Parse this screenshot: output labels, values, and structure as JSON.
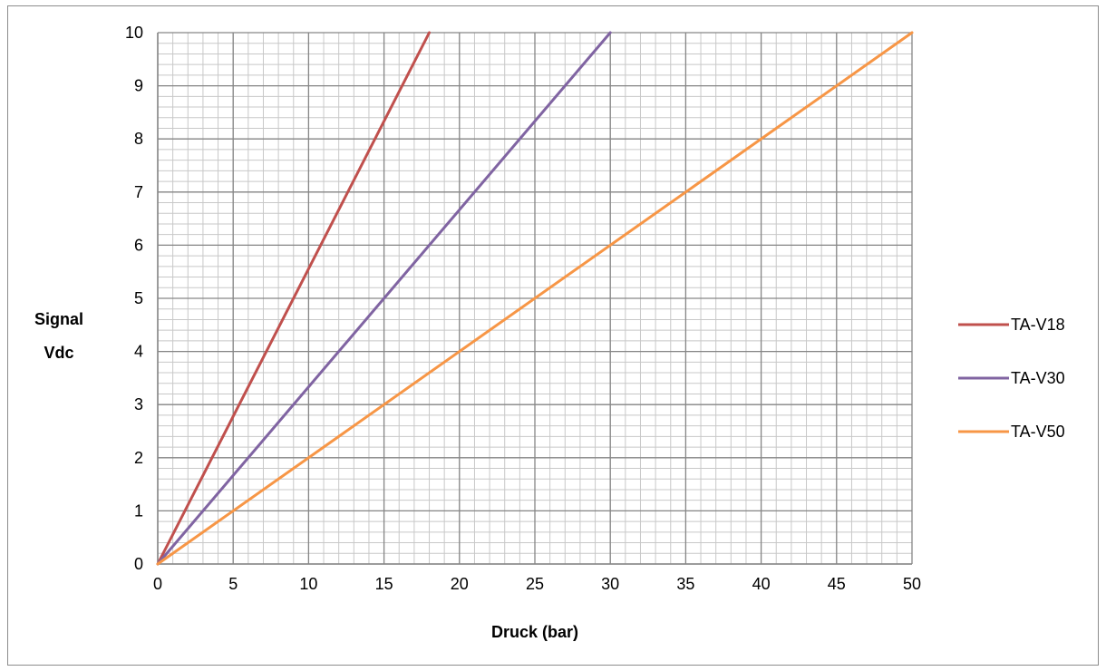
{
  "chart_data": {
    "type": "line",
    "title": "",
    "xlabel": "Druck (bar)",
    "ylabel_lines": [
      "Signal",
      "Vdc"
    ],
    "xlim": [
      0,
      50
    ],
    "ylim": [
      0,
      10
    ],
    "x_major_step": 5,
    "x_minor_step": 1,
    "y_major_step": 1,
    "y_minor_step": 0.2,
    "x_ticks": [
      "0",
      "5",
      "10",
      "15",
      "20",
      "25",
      "30",
      "35",
      "40",
      "45",
      "50"
    ],
    "y_ticks": [
      "0",
      "1",
      "2",
      "3",
      "4",
      "5",
      "6",
      "7",
      "8",
      "9",
      "10"
    ],
    "grid": true,
    "legend_position": "right",
    "series": [
      {
        "name": "TA-V18",
        "color": "#C0504D",
        "x": [
          0,
          18
        ],
        "y": [
          0,
          10
        ]
      },
      {
        "name": "TA-V30",
        "color": "#8064A2",
        "x": [
          0,
          30
        ],
        "y": [
          0,
          10
        ]
      },
      {
        "name": "TA-V50",
        "color": "#F79646",
        "x": [
          0,
          50
        ],
        "y": [
          0,
          10
        ]
      }
    ]
  }
}
